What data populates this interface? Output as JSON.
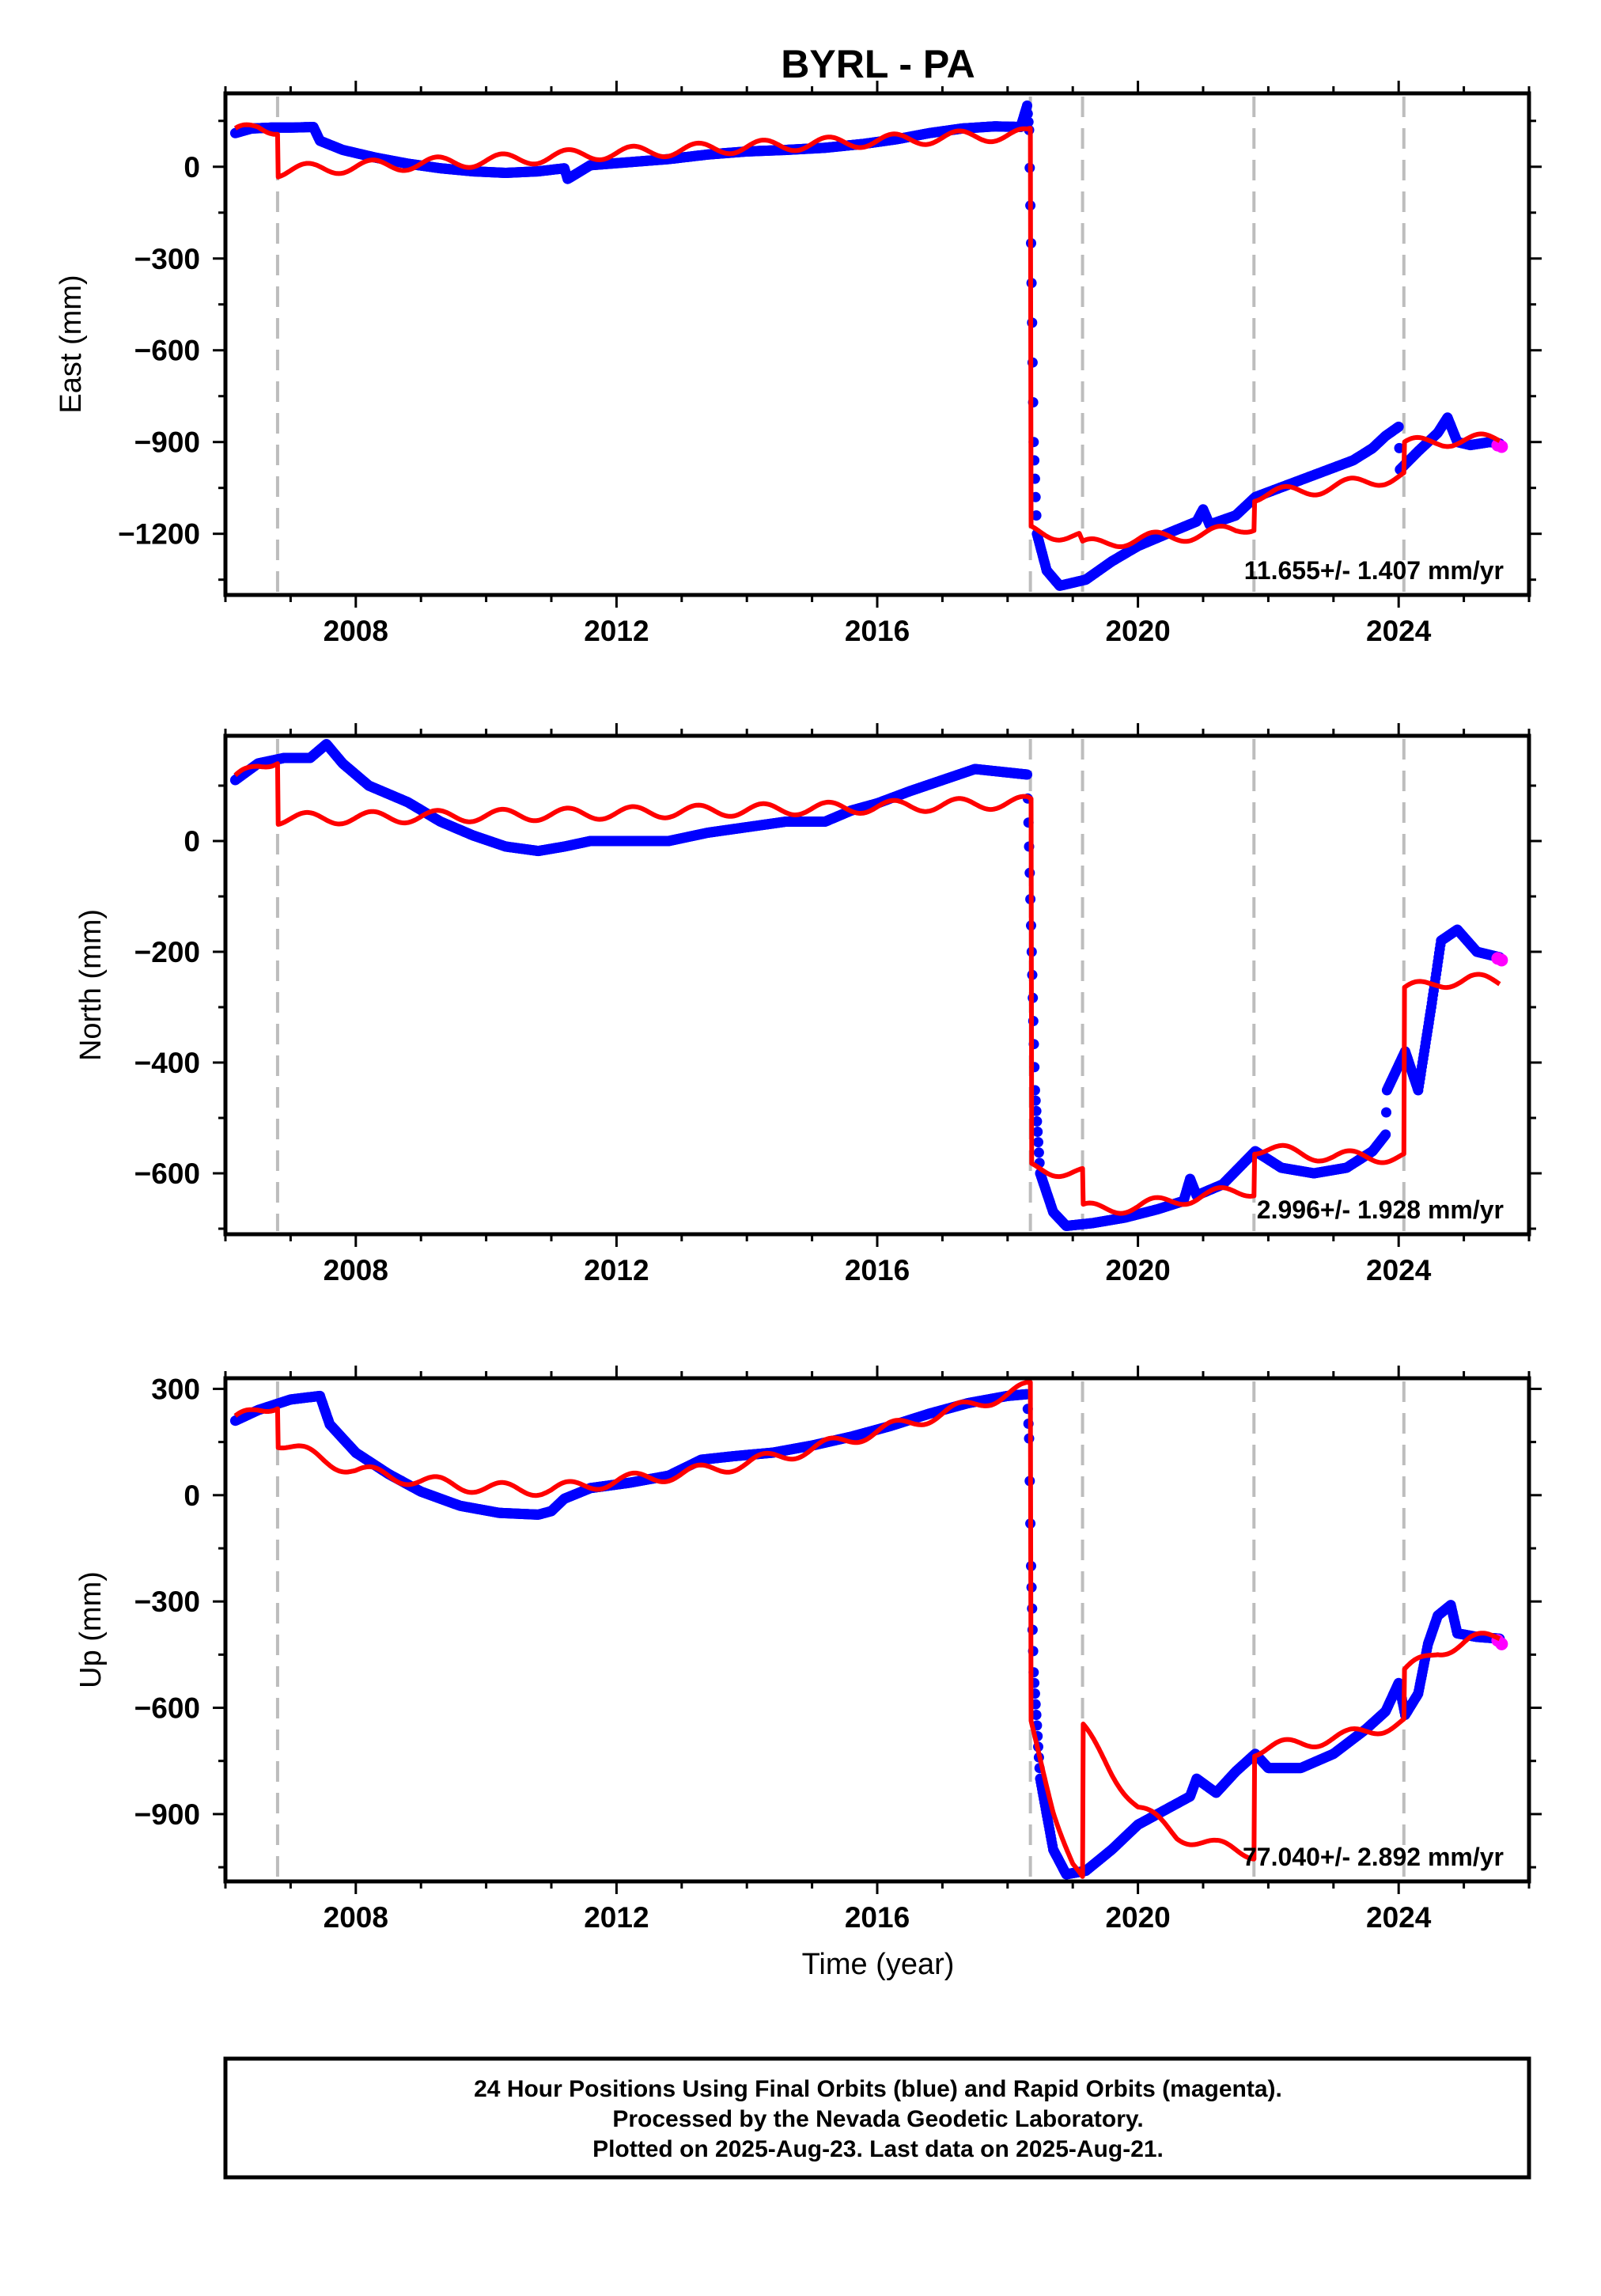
{
  "chart_data": {
    "type": "scatter",
    "title": "BYRL - PA",
    "xlabel": "Time (year)",
    "xlim": [
      2006.0,
      2026.0
    ],
    "x_ticks": [
      2008,
      2012,
      2016,
      2020,
      2024
    ],
    "x_tick_labels": [
      "2008",
      "2012",
      "2016",
      "2020",
      "2024"
    ],
    "colors": {
      "final": "#0000ff",
      "rapid": "#ff00ff",
      "model": "#ff0000",
      "event_line": "#bdbdbd"
    },
    "event_lines": [
      2006.8,
      2018.35,
      2019.15,
      2021.78,
      2024.08
    ],
    "panels": [
      {
        "ylabel": "East (mm)",
        "ylim": [
          -1400,
          240
        ],
        "y_ticks": [
          0,
          -300,
          -600,
          -900,
          -1200
        ],
        "y_tick_labels": [
          "0",
          "−300",
          "−600",
          "−900",
          "−1200"
        ],
        "rate": "11.655+/- 1.407 mm/yr",
        "final_series": [
          [
            2006.15,
            110
          ],
          [
            2006.4,
            125
          ],
          [
            2006.7,
            128
          ],
          [
            2007.0,
            128
          ],
          [
            2007.35,
            130
          ],
          [
            2007.45,
            85
          ],
          [
            2007.8,
            55
          ],
          [
            2008.3,
            30
          ],
          [
            2008.8,
            10
          ],
          [
            2009.3,
            -5
          ],
          [
            2009.8,
            -15
          ],
          [
            2010.3,
            -20
          ],
          [
            2010.8,
            -15
          ],
          [
            2011.2,
            -5
          ],
          [
            2011.25,
            -40
          ],
          [
            2011.6,
            5
          ],
          [
            2012.2,
            15
          ],
          [
            2012.8,
            25
          ],
          [
            2013.4,
            40
          ],
          [
            2014.0,
            50
          ],
          [
            2014.6,
            55
          ],
          [
            2015.2,
            62
          ],
          [
            2015.8,
            75
          ],
          [
            2016.3,
            90
          ],
          [
            2016.8,
            110
          ],
          [
            2017.3,
            125
          ],
          [
            2017.8,
            132
          ],
          [
            2018.2,
            130
          ],
          [
            2018.3,
            200
          ],
          [
            2018.33,
            120
          ],
          [
            2018.36,
            -250
          ],
          [
            2018.4,
            -900
          ],
          [
            2018.45,
            -1200
          ],
          [
            2018.6,
            -1320
          ],
          [
            2018.8,
            -1370
          ],
          [
            2019.2,
            -1350
          ],
          [
            2019.6,
            -1290
          ],
          [
            2020.0,
            -1240
          ],
          [
            2020.5,
            -1195
          ],
          [
            2020.9,
            -1160
          ],
          [
            2021.0,
            -1120
          ],
          [
            2021.1,
            -1170
          ],
          [
            2021.5,
            -1140
          ],
          [
            2021.8,
            -1080
          ],
          [
            2022.3,
            -1040
          ],
          [
            2022.8,
            -1000
          ],
          [
            2023.3,
            -960
          ],
          [
            2023.6,
            -920
          ],
          [
            2023.8,
            -880
          ],
          [
            2024.0,
            -850
          ],
          [
            2024.02,
            -990
          ],
          [
            2024.3,
            -930
          ],
          [
            2024.6,
            -870
          ],
          [
            2024.75,
            -820
          ],
          [
            2024.9,
            -900
          ],
          [
            2025.1,
            -910
          ],
          [
            2025.4,
            -900
          ],
          [
            2025.55,
            -905
          ]
        ],
        "rapid_series": [
          [
            2025.52,
            -910
          ],
          [
            2025.58,
            -915
          ]
        ],
        "model_series": [
          [
            2006.15,
            110
          ],
          [
            2006.5,
            130
          ],
          [
            2006.8,
            125
          ],
          [
            2006.81,
            -15
          ],
          [
            2007.5,
            -5
          ],
          [
            2008.5,
            5
          ],
          [
            2009.5,
            15
          ],
          [
            2010.5,
            25
          ],
          [
            2011.5,
            40
          ],
          [
            2012.5,
            50
          ],
          [
            2013.5,
            60
          ],
          [
            2014.5,
            70
          ],
          [
            2015.5,
            80
          ],
          [
            2016.5,
            90
          ],
          [
            2017.5,
            100
          ],
          [
            2018.3,
            105
          ],
          [
            2018.35,
            110
          ],
          [
            2018.36,
            -1190
          ],
          [
            2019.1,
            -1210
          ],
          [
            2019.15,
            -1240
          ],
          [
            2019.6,
            -1225
          ],
          [
            2020.5,
            -1210
          ],
          [
            2021.5,
            -1190
          ],
          [
            2021.78,
            -1170
          ],
          [
            2021.79,
            -1075
          ],
          [
            2022.5,
            -1060
          ],
          [
            2023.2,
            -1040
          ],
          [
            2024.08,
            -1010
          ],
          [
            2024.09,
            -910
          ],
          [
            2024.6,
            -895
          ],
          [
            2025.1,
            -895
          ],
          [
            2025.55,
            -890
          ]
        ]
      },
      {
        "ylabel": "North (mm)",
        "ylim": [
          -710,
          190
        ],
        "y_ticks": [
          0,
          -200,
          -400,
          -600
        ],
        "y_tick_labels": [
          "0",
          "−200",
          "−400",
          "−600"
        ],
        "rate": "2.996+/- 1.928 mm/yr",
        "final_series": [
          [
            2006.15,
            110
          ],
          [
            2006.5,
            140
          ],
          [
            2006.9,
            150
          ],
          [
            2007.3,
            150
          ],
          [
            2007.55,
            175
          ],
          [
            2007.8,
            140
          ],
          [
            2008.2,
            100
          ],
          [
            2008.8,
            70
          ],
          [
            2009.3,
            35
          ],
          [
            2009.8,
            10
          ],
          [
            2010.3,
            -10
          ],
          [
            2010.8,
            -18
          ],
          [
            2011.2,
            -10
          ],
          [
            2011.6,
            0
          ],
          [
            2012.2,
            0
          ],
          [
            2012.8,
            0
          ],
          [
            2013.4,
            15
          ],
          [
            2014.0,
            25
          ],
          [
            2014.6,
            35
          ],
          [
            2015.2,
            35
          ],
          [
            2015.6,
            55
          ],
          [
            2016.0,
            68
          ],
          [
            2016.5,
            90
          ],
          [
            2017.0,
            110
          ],
          [
            2017.5,
            130
          ],
          [
            2018.3,
            120
          ],
          [
            2018.33,
            -10
          ],
          [
            2018.37,
            -200
          ],
          [
            2018.42,
            -450
          ],
          [
            2018.5,
            -600
          ],
          [
            2018.7,
            -670
          ],
          [
            2018.9,
            -695
          ],
          [
            2019.3,
            -690
          ],
          [
            2019.8,
            -680
          ],
          [
            2020.3,
            -665
          ],
          [
            2020.7,
            -650
          ],
          [
            2020.8,
            -610
          ],
          [
            2020.9,
            -640
          ],
          [
            2021.3,
            -620
          ],
          [
            2021.8,
            -560
          ],
          [
            2022.2,
            -590
          ],
          [
            2022.7,
            -600
          ],
          [
            2023.2,
            -590
          ],
          [
            2023.6,
            -560
          ],
          [
            2023.8,
            -530
          ],
          [
            2023.82,
            -450
          ],
          [
            2024.1,
            -380
          ],
          [
            2024.3,
            -450
          ],
          [
            2024.5,
            -300
          ],
          [
            2024.65,
            -180
          ],
          [
            2024.9,
            -160
          ],
          [
            2025.2,
            -200
          ],
          [
            2025.55,
            -210
          ]
        ],
        "rapid_series": [
          [
            2025.52,
            -212
          ],
          [
            2025.58,
            -215
          ]
        ],
        "model_series": [
          [
            2006.15,
            110
          ],
          [
            2006.5,
            135
          ],
          [
            2006.8,
            150
          ],
          [
            2006.81,
            40
          ],
          [
            2008.0,
            42
          ],
          [
            2009.5,
            45
          ],
          [
            2011.0,
            48
          ],
          [
            2012.5,
            52
          ],
          [
            2014.0,
            56
          ],
          [
            2015.5,
            60
          ],
          [
            2017.0,
            65
          ],
          [
            2018.3,
            70
          ],
          [
            2018.36,
            68
          ],
          [
            2018.37,
            -590
          ],
          [
            2019.15,
            -600
          ],
          [
            2019.16,
            -665
          ],
          [
            2020.0,
            -660
          ],
          [
            2021.0,
            -640
          ],
          [
            2021.78,
            -630
          ],
          [
            2021.79,
            -555
          ],
          [
            2023.0,
            -570
          ],
          [
            2024.08,
            -570
          ],
          [
            2024.09,
            -270
          ],
          [
            2024.6,
            -255
          ],
          [
            2025.1,
            -250
          ],
          [
            2025.55,
            -255
          ]
        ]
      },
      {
        "ylabel": "Up (mm)",
        "ylim": [
          -1090,
          330
        ],
        "y_ticks": [
          300,
          0,
          -300,
          -600,
          -900
        ],
        "y_tick_labels": [
          "300",
          "0",
          "−300",
          "−600",
          "−900"
        ],
        "rate": "77.040+/- 2.892 mm/yr",
        "final_series": [
          [
            2006.15,
            210
          ],
          [
            2006.5,
            240
          ],
          [
            2007.0,
            270
          ],
          [
            2007.45,
            280
          ],
          [
            2007.6,
            200
          ],
          [
            2008.0,
            120
          ],
          [
            2008.5,
            60
          ],
          [
            2009.0,
            10
          ],
          [
            2009.6,
            -30
          ],
          [
            2010.2,
            -50
          ],
          [
            2010.8,
            -55
          ],
          [
            2011.0,
            -45
          ],
          [
            2011.2,
            -10
          ],
          [
            2011.6,
            20
          ],
          [
            2012.2,
            35
          ],
          [
            2012.8,
            55
          ],
          [
            2013.3,
            100
          ],
          [
            2013.8,
            110
          ],
          [
            2014.4,
            120
          ],
          [
            2015.0,
            140
          ],
          [
            2015.6,
            165
          ],
          [
            2016.2,
            195
          ],
          [
            2016.8,
            230
          ],
          [
            2017.4,
            260
          ],
          [
            2018.0,
            280
          ],
          [
            2018.3,
            285
          ],
          [
            2018.33,
            160
          ],
          [
            2018.36,
            -200
          ],
          [
            2018.4,
            -500
          ],
          [
            2018.5,
            -800
          ],
          [
            2018.7,
            -1000
          ],
          [
            2018.9,
            -1070
          ],
          [
            2019.2,
            -1060
          ],
          [
            2019.6,
            -1000
          ],
          [
            2020.0,
            -930
          ],
          [
            2020.5,
            -880
          ],
          [
            2020.8,
            -850
          ],
          [
            2020.9,
            -800
          ],
          [
            2021.2,
            -840
          ],
          [
            2021.5,
            -780
          ],
          [
            2021.8,
            -730
          ],
          [
            2022.0,
            -770
          ],
          [
            2022.5,
            -770
          ],
          [
            2023.0,
            -730
          ],
          [
            2023.5,
            -660
          ],
          [
            2023.8,
            -610
          ],
          [
            2024.0,
            -530
          ],
          [
            2024.1,
            -620
          ],
          [
            2024.3,
            -560
          ],
          [
            2024.45,
            -420
          ],
          [
            2024.6,
            -340
          ],
          [
            2024.8,
            -310
          ],
          [
            2024.9,
            -390
          ],
          [
            2025.2,
            -400
          ],
          [
            2025.55,
            -405
          ]
        ],
        "rapid_series": [
          [
            2025.52,
            -410
          ],
          [
            2025.58,
            -420
          ]
        ],
        "model_series": [
          [
            2006.15,
            210
          ],
          [
            2006.5,
            240
          ],
          [
            2006.8,
            260
          ],
          [
            2006.81,
            150
          ],
          [
            2007.5,
            100
          ],
          [
            2008.0,
            70
          ],
          [
            2009.0,
            40
          ],
          [
            2010.0,
            20
          ],
          [
            2011.0,
            15
          ],
          [
            2012.0,
            40
          ],
          [
            2013.0,
            60
          ],
          [
            2014.0,
            90
          ],
          [
            2015.0,
            130
          ],
          [
            2016.0,
            180
          ],
          [
            2017.0,
            230
          ],
          [
            2018.0,
            285
          ],
          [
            2018.35,
            305
          ],
          [
            2018.36,
            -650
          ],
          [
            2018.7,
            -880
          ],
          [
            2019.0,
            -1040
          ],
          [
            2019.15,
            -1090
          ],
          [
            2019.16,
            -660
          ],
          [
            2019.6,
            -780
          ],
          [
            2020.0,
            -880
          ],
          [
            2020.6,
            -960
          ],
          [
            2021.2,
            -990
          ],
          [
            2021.78,
            -1010
          ],
          [
            2021.79,
            -720
          ],
          [
            2022.5,
            -700
          ],
          [
            2023.2,
            -680
          ],
          [
            2024.08,
            -640
          ],
          [
            2024.09,
            -500
          ],
          [
            2024.6,
            -440
          ],
          [
            2025.1,
            -410
          ],
          [
            2025.55,
            -400
          ]
        ]
      }
    ],
    "footer": [
      "24 Hour Positions Using Final Orbits (blue) and Rapid Orbits (magenta).",
      "Processed by the Nevada Geodetic Laboratory.",
      "Plotted on 2025-Aug-23. Last data on 2025-Aug-21."
    ]
  }
}
